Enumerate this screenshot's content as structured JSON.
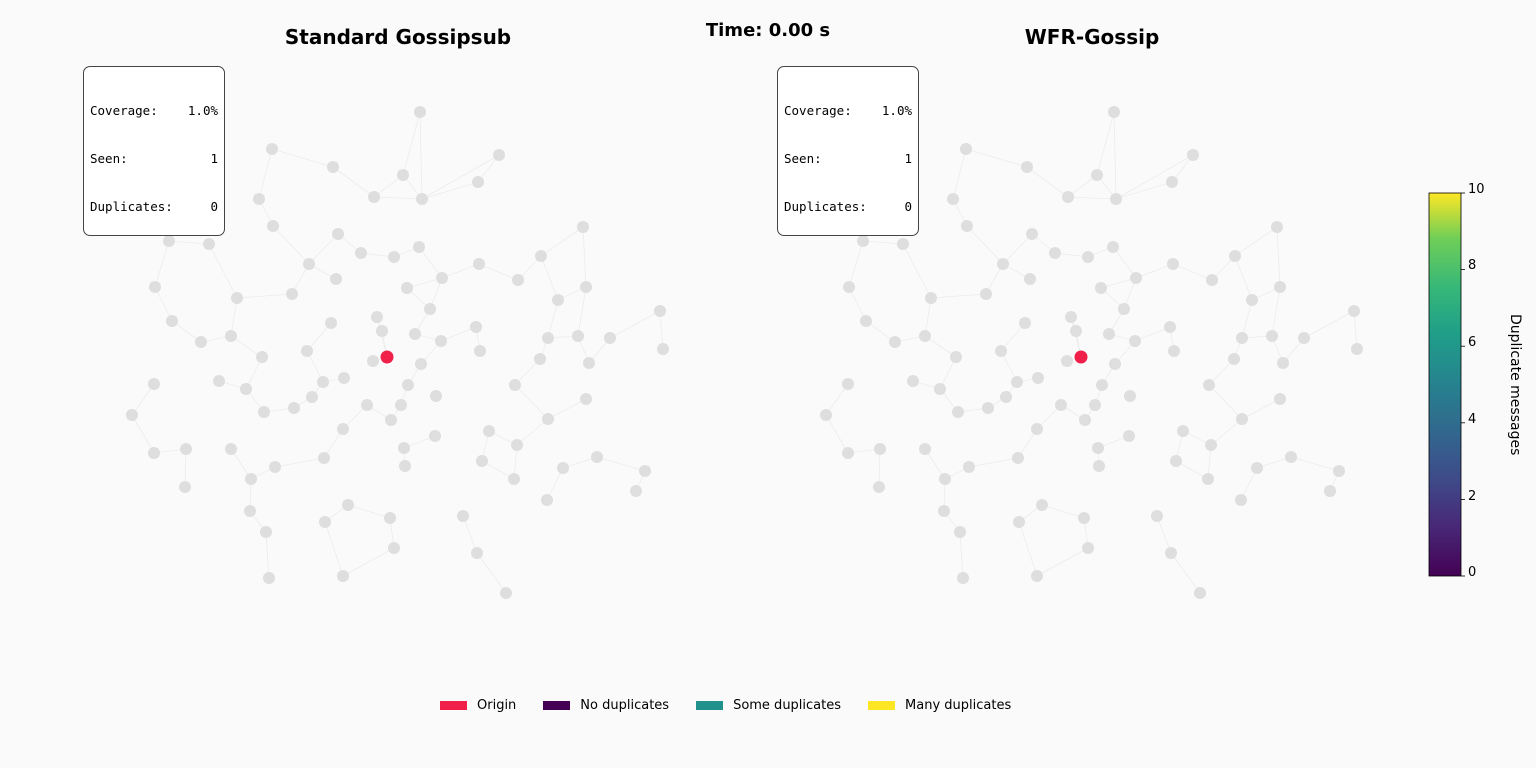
{
  "chart_data": [
    {
      "type": "scatter",
      "title": "Standard Gossipsub",
      "stats": {
        "coverage_label": "Coverage:",
        "coverage_value": "1.0%",
        "seen_label": "Seen:",
        "seen_value": "1",
        "dup_label": "Duplicates:",
        "dup_value": "0"
      },
      "origin_nodes": 1,
      "unseen_nodes": 99
    },
    {
      "type": "scatter",
      "title": "WFR-Gossip",
      "stats": {
        "coverage_label": "Coverage:",
        "coverage_value": "1.0%",
        "seen_label": "Seen:",
        "seen_value": "1",
        "dup_label": "Duplicates:",
        "dup_value": "0"
      },
      "origin_nodes": 1,
      "unseen_nodes": 99
    }
  ],
  "time_label": "Time: 0.00 s",
  "colorbar": {
    "label": "Duplicate messages",
    "range": [
      0,
      10
    ],
    "ticks": [
      "0",
      "2",
      "4",
      "6",
      "8",
      "10"
    ],
    "colormap": "viridis"
  },
  "legend": [
    {
      "label": "Origin",
      "color": "#f0204a"
    },
    {
      "label": "No duplicates",
      "color": "#440154"
    },
    {
      "label": "Some duplicates",
      "color": "#21918c"
    },
    {
      "label": "Many duplicates",
      "color": "#fde725"
    }
  ],
  "colors": {
    "unseen_node": "#dedede",
    "origin_node": "#f0204a",
    "edge": "#ececec"
  }
}
